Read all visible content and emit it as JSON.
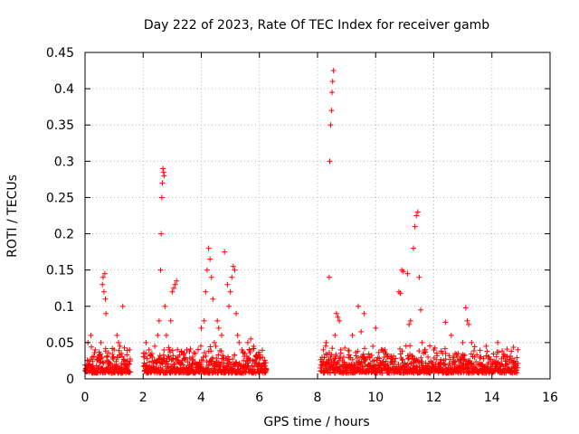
{
  "chart_data": {
    "type": "scatter",
    "title": "Day 222 of 2023, Rate Of TEC Index for receiver gamb",
    "xlabel": "GPS time / hours",
    "ylabel": "ROTI / TECUs",
    "xlim": [
      0,
      16
    ],
    "ylim": [
      0,
      0.45
    ],
    "xticks": [
      0,
      2,
      4,
      6,
      8,
      10,
      12,
      14,
      16
    ],
    "xtick_labels": [
      "0",
      "2",
      "4",
      "6",
      "8",
      "10",
      "12",
      "14",
      "16"
    ],
    "yticks": [
      0,
      0.05,
      0.1,
      0.15,
      0.2,
      0.25,
      0.3,
      0.35,
      0.4,
      0.45
    ],
    "ytick_labels": [
      "0",
      "0.05",
      "0.1",
      "0.15",
      "0.2",
      "0.25",
      "0.3",
      "0.35",
      "0.4",
      "0.45"
    ],
    "grid": true,
    "marker": "+",
    "series": [
      {
        "name": "ROTI",
        "color": "#ff0000",
        "x": [
          0.05,
          0.1,
          0.15,
          0.2,
          0.25,
          0.3,
          0.35,
          0.45,
          0.55,
          0.6,
          0.62,
          0.65,
          0.68,
          0.7,
          0.72,
          0.75,
          0.8,
          0.9,
          1.0,
          1.1,
          1.15,
          1.2,
          1.25,
          1.3,
          1.35,
          1.4,
          1.45,
          1.5,
          2.05,
          2.1,
          2.2,
          2.3,
          2.4,
          2.5,
          2.55,
          2.6,
          2.62,
          2.64,
          2.66,
          2.68,
          2.7,
          2.72,
          2.75,
          2.8,
          2.9,
          2.95,
          3.0,
          3.05,
          3.1,
          3.15,
          3.2,
          3.3,
          3.4,
          3.5,
          3.6,
          3.7,
          3.8,
          3.9,
          4.0,
          4.1,
          4.15,
          4.2,
          4.25,
          4.3,
          4.35,
          4.4,
          4.45,
          4.5,
          4.55,
          4.6,
          4.7,
          4.8,
          4.9,
          4.95,
          5.0,
          5.05,
          5.1,
          5.15,
          5.2,
          5.25,
          5.3,
          5.4,
          5.5,
          5.6,
          5.7,
          5.8,
          5.9,
          6.0,
          6.1,
          6.2,
          8.1,
          8.2,
          8.3,
          8.4,
          8.42,
          8.45,
          8.48,
          8.5,
          8.52,
          8.55,
          8.6,
          8.65,
          8.7,
          8.75,
          8.8,
          8.9,
          9.0,
          9.2,
          9.4,
          9.5,
          9.6,
          9.8,
          10.0,
          10.2,
          10.4,
          10.6,
          10.8,
          10.85,
          10.9,
          10.95,
          11.1,
          11.15,
          11.2,
          11.3,
          11.35,
          11.4,
          11.45,
          11.5,
          11.55,
          11.6,
          11.7,
          11.8,
          12.0,
          12.2,
          12.4,
          12.6,
          12.8,
          13.0,
          13.1,
          13.15,
          13.2,
          13.3,
          13.4,
          13.6,
          13.8,
          14.0,
          14.2,
          14.4,
          14.6,
          14.8
        ],
        "y": [
          0.01,
          0.05,
          0.02,
          0.06,
          0.03,
          0.015,
          0.04,
          0.03,
          0.05,
          0.13,
          0.14,
          0.12,
          0.145,
          0.11,
          0.09,
          0.03,
          0.02,
          0.015,
          0.04,
          0.06,
          0.05,
          0.045,
          0.035,
          0.1,
          0.02,
          0.015,
          0.01,
          0.02,
          0.03,
          0.05,
          0.04,
          0.035,
          0.045,
          0.06,
          0.08,
          0.15,
          0.2,
          0.25,
          0.27,
          0.29,
          0.285,
          0.28,
          0.1,
          0.06,
          0.04,
          0.08,
          0.12,
          0.125,
          0.13,
          0.135,
          0.03,
          0.02,
          0.015,
          0.04,
          0.02,
          0.03,
          0.035,
          0.02,
          0.07,
          0.08,
          0.12,
          0.15,
          0.18,
          0.165,
          0.14,
          0.11,
          0.05,
          0.045,
          0.08,
          0.07,
          0.06,
          0.175,
          0.13,
          0.1,
          0.12,
          0.14,
          0.155,
          0.15,
          0.09,
          0.06,
          0.05,
          0.04,
          0.035,
          0.05,
          0.055,
          0.045,
          0.03,
          0.02,
          0.015,
          0.01,
          0.015,
          0.04,
          0.05,
          0.14,
          0.3,
          0.35,
          0.37,
          0.395,
          0.41,
          0.425,
          0.06,
          0.09,
          0.085,
          0.08,
          0.04,
          0.03,
          0.02,
          0.06,
          0.1,
          0.065,
          0.09,
          0.03,
          0.07,
          0.04,
          0.03,
          0.02,
          0.12,
          0.118,
          0.15,
          0.148,
          0.145,
          0.075,
          0.08,
          0.18,
          0.21,
          0.225,
          0.23,
          0.14,
          0.095,
          0.05,
          0.04,
          0.03,
          0.04,
          0.02,
          0.078,
          0.06,
          0.03,
          0.05,
          0.098,
          0.08,
          0.075,
          0.05,
          0.03,
          0.02,
          0.045,
          0.02,
          0.05,
          0.03,
          0.025,
          0.02
        ]
      }
    ],
    "gaps": [
      [
        1.6,
        2.0
      ],
      [
        6.3,
        8.1
      ]
    ],
    "base_band": [
      [
        0.0,
        1.55
      ],
      [
        2.0,
        6.25
      ],
      [
        8.1,
        14.9
      ]
    ]
  }
}
